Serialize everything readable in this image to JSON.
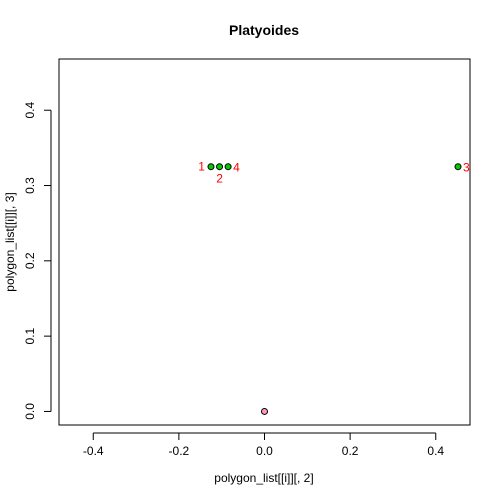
{
  "chart_data": {
    "type": "scatter",
    "title": "Platyoides",
    "xlabel": "polygon_list[[i]][, 2]",
    "ylabel": "polygon_list[[i]][, 3]",
    "xlim": [
      -0.48,
      0.48
    ],
    "ylim": [
      -0.018,
      0.468
    ],
    "xticks": [
      -0.4,
      -0.2,
      0.0,
      0.2,
      0.4
    ],
    "xtick_labels": [
      "-0.4",
      "-0.2",
      "0.0",
      "0.2",
      "0.4"
    ],
    "yticks": [
      0.0,
      0.1,
      0.2,
      0.3,
      0.4
    ],
    "ytick_labels": [
      "0.0",
      "0.1",
      "0.2",
      "0.3",
      "0.4"
    ],
    "grid": false,
    "series": [
      {
        "color": "#00cc00",
        "points": [
          {
            "x": -0.125,
            "y": 0.325,
            "label": "1",
            "label_pos": "left"
          },
          {
            "x": -0.105,
            "y": 0.325,
            "label": "2",
            "label_pos": "below"
          },
          {
            "x": 0.452,
            "y": 0.325,
            "label": "3",
            "label_pos": "right"
          },
          {
            "x": -0.085,
            "y": 0.325,
            "label": "4",
            "label_pos": "right"
          }
        ]
      },
      {
        "color": "#ff99bb",
        "points": [
          {
            "x": 0.0,
            "y": 0.0,
            "label": "",
            "label_pos": "none"
          }
        ]
      }
    ],
    "label_color": "#ff0000"
  }
}
